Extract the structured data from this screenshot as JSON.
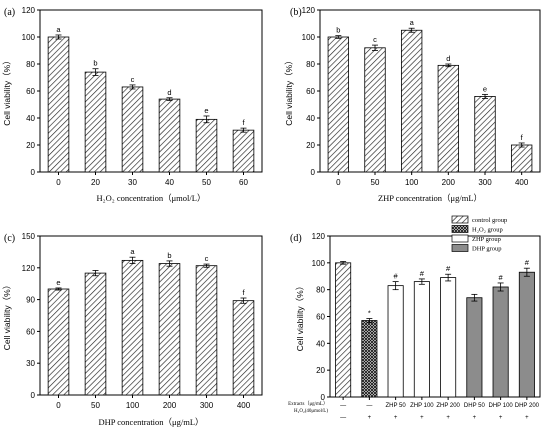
{
  "chart_data": [
    {
      "panel": "(a)",
      "type": "bar",
      "categories": [
        "0",
        "20",
        "30",
        "40",
        "50",
        "60"
      ],
      "values": [
        100,
        74,
        63,
        54,
        39,
        31
      ],
      "errors": [
        1.5,
        2.5,
        1.5,
        1.0,
        2.5,
        1.5
      ],
      "letters": [
        "a",
        "b",
        "c",
        "d",
        "e",
        "f"
      ],
      "xlabel": "H₂O₂ concentration（μmol/L）",
      "ylabel": "Cell viability（%）",
      "ylim": [
        0,
        120
      ],
      "yticks": [
        0,
        20,
        40,
        60,
        80,
        100,
        120
      ]
    },
    {
      "panel": "(b)",
      "type": "bar",
      "categories": [
        "0",
        "50",
        "100",
        "200",
        "300",
        "400"
      ],
      "values": [
        100,
        92,
        105,
        79,
        56,
        20
      ],
      "errors": [
        1.0,
        2.0,
        1.5,
        1.0,
        1.5,
        1.5
      ],
      "letters": [
        "b",
        "c",
        "a",
        "d",
        "e",
        "f"
      ],
      "xlabel": "ZHP concentration（μg/mL）",
      "ylabel": "Cell viability（%）",
      "ylim": [
        0,
        120
      ],
      "yticks": [
        0,
        20,
        40,
        60,
        80,
        100,
        120
      ]
    },
    {
      "panel": "(c)",
      "type": "bar",
      "categories": [
        "0",
        "50",
        "100",
        "200",
        "300",
        "400"
      ],
      "values": [
        100,
        115,
        127,
        124,
        122,
        89
      ],
      "errors": [
        1.0,
        2.5,
        3.0,
        2.5,
        1.5,
        2.5
      ],
      "letters": [
        "e",
        "",
        "a",
        "b",
        "c",
        "f"
      ],
      "xlabel": "DHP concentration（μg/mL）",
      "ylabel": "Cell viability（%）",
      "ylim": [
        0,
        150
      ],
      "yticks": [
        0,
        30,
        60,
        90,
        120,
        150
      ]
    },
    {
      "panel": "(d)",
      "type": "bar",
      "values": [
        100,
        57,
        83,
        86,
        89,
        74,
        82,
        93
      ],
      "errors": [
        1.0,
        1.5,
        3.0,
        2.0,
        2.5,
        2.5,
        3.0,
        3.0
      ],
      "groups": [
        "control",
        "h2o2",
        "zhp",
        "zhp",
        "zhp",
        "dhp",
        "dhp",
        "dhp"
      ],
      "markers": [
        "",
        "*",
        "#",
        "#",
        "#",
        "",
        "#",
        "#"
      ],
      "extracts_row": [
        "—",
        "—",
        "ZHP 50",
        "ZHP 100",
        "ZHP 200",
        "DHP 50",
        "DHP 100",
        "DHP 200"
      ],
      "h2o2_row": [
        "—",
        "+",
        "+",
        "+",
        "+",
        "+",
        "+",
        "+"
      ],
      "row_labels": [
        "Extracts（μg/mL）",
        "H₂O₂(40μmol/L)"
      ],
      "legend": [
        "control group",
        "H₂O₂ group",
        "ZHP  group",
        "DHP  group"
      ],
      "ylabel": "Cell viability（%）",
      "ylim": [
        0,
        120
      ],
      "yticks": [
        0,
        20,
        40,
        60,
        80,
        100,
        120
      ]
    }
  ]
}
